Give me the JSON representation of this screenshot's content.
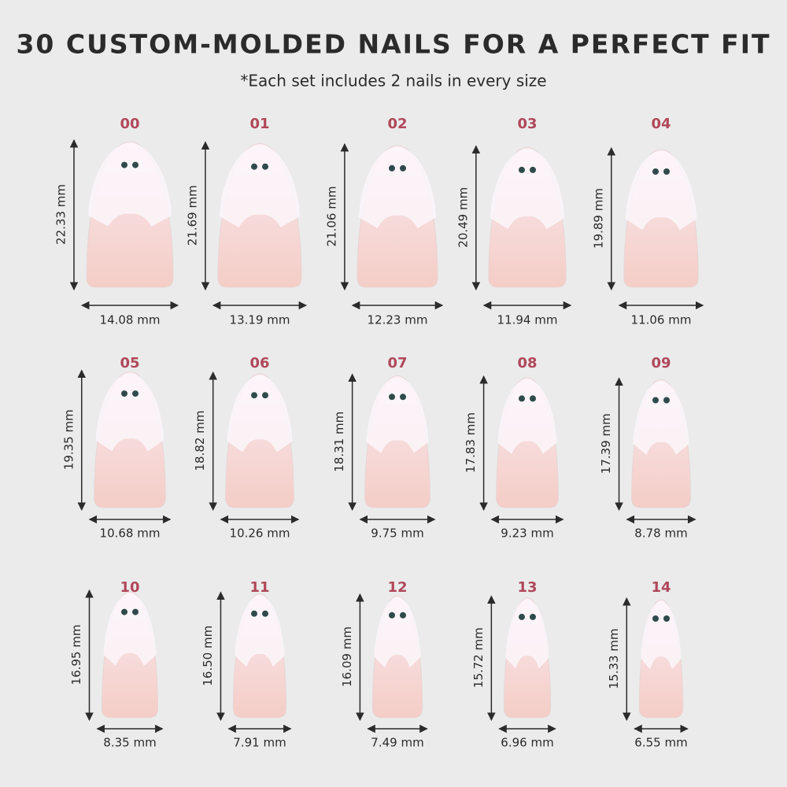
{
  "header": {
    "title": "30 CUSTOM-MOLDED NAILS FOR A PERFECT FIT",
    "subtitle": "*Each set includes 2 nails in every size"
  },
  "nails": [
    {
      "label": "00",
      "length": "22.33 mm",
      "width": "14.08 mm"
    },
    {
      "label": "01",
      "length": "21.69 mm",
      "width": "13.19 mm"
    },
    {
      "label": "02",
      "length": "21.06 mm",
      "width": "12.23 mm"
    },
    {
      "label": "03",
      "length": "20.49 mm",
      "width": "11.94 mm"
    },
    {
      "label": "04",
      "length": "19.89 mm",
      "width": "11.06 mm"
    },
    {
      "label": "05",
      "length": "19.35 mm",
      "width": "10.68 mm"
    },
    {
      "label": "06",
      "length": "18.82 mm",
      "width": "10.26 mm"
    },
    {
      "label": "07",
      "length": "18.31 mm",
      "width": "9.75 mm"
    },
    {
      "label": "08",
      "length": "17.83 mm",
      "width": "9.23 mm"
    },
    {
      "label": "09",
      "length": "17.39 mm",
      "width": "8.78 mm"
    },
    {
      "label": "10",
      "length": "16.95 mm",
      "width": "8.35 mm"
    },
    {
      "label": "11",
      "length": "16.50 mm",
      "width": "7.91 mm"
    },
    {
      "label": "12",
      "length": "16.09 mm",
      "width": "7.49 mm"
    },
    {
      "label": "13",
      "length": "15.72 mm",
      "width": "6.96 mm"
    },
    {
      "label": "14",
      "length": "15.33 mm",
      "width": "6.55 mm"
    }
  ]
}
